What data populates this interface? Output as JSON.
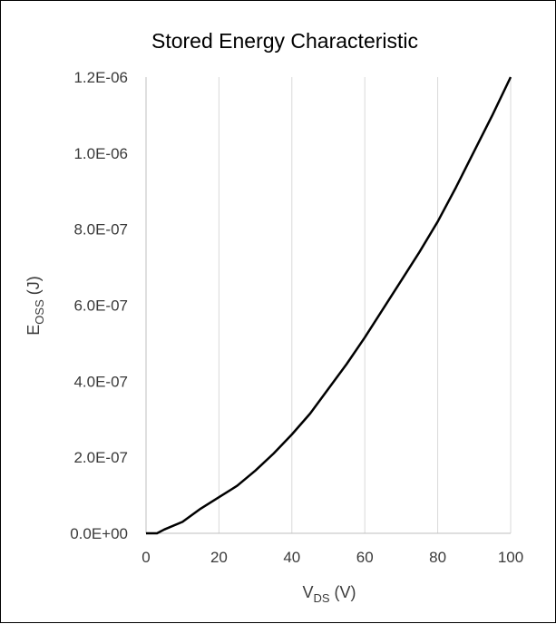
{
  "chart_data": {
    "type": "line",
    "title": "Stored Energy Characteristic",
    "xlabel": {
      "main": "V",
      "sub": "DS",
      "unit": " (V)"
    },
    "ylabel": {
      "main": "E",
      "sub": "OSS",
      "unit": " (J)"
    },
    "xlim": [
      0,
      100
    ],
    "ylim": [
      0,
      1.2e-06
    ],
    "x_ticks": [
      0,
      20,
      40,
      60,
      80,
      100
    ],
    "x_tick_labels": [
      "0",
      "20",
      "40",
      "60",
      "80",
      "100"
    ],
    "y_ticks": [
      0,
      2e-07,
      4e-07,
      6e-07,
      8e-07,
      1e-06,
      1.2e-06
    ],
    "y_tick_labels": [
      "0.0E+00",
      "2.0E-07",
      "4.0E-07",
      "6.0E-07",
      "8.0E-07",
      "1.0E-06",
      "1.2E-06"
    ],
    "grid": "vertical",
    "legend": "none",
    "series": [
      {
        "color": "#000000",
        "x": [
          0,
          3,
          5,
          10,
          15,
          20,
          25,
          30,
          35,
          40,
          45,
          50,
          55,
          60,
          65,
          70,
          75,
          80,
          85,
          90,
          95,
          100
        ],
        "y": [
          0,
          0,
          1e-08,
          3e-08,
          6.5e-08,
          9.5e-08,
          1.25e-07,
          1.65e-07,
          2.1e-07,
          2.6e-07,
          3.15e-07,
          3.8e-07,
          4.45e-07,
          5.15e-07,
          5.9e-07,
          6.65e-07,
          7.4e-07,
          8.2e-07,
          9.1e-07,
          1.005e-06,
          1.1e-06,
          1.2e-06
        ]
      }
    ]
  }
}
